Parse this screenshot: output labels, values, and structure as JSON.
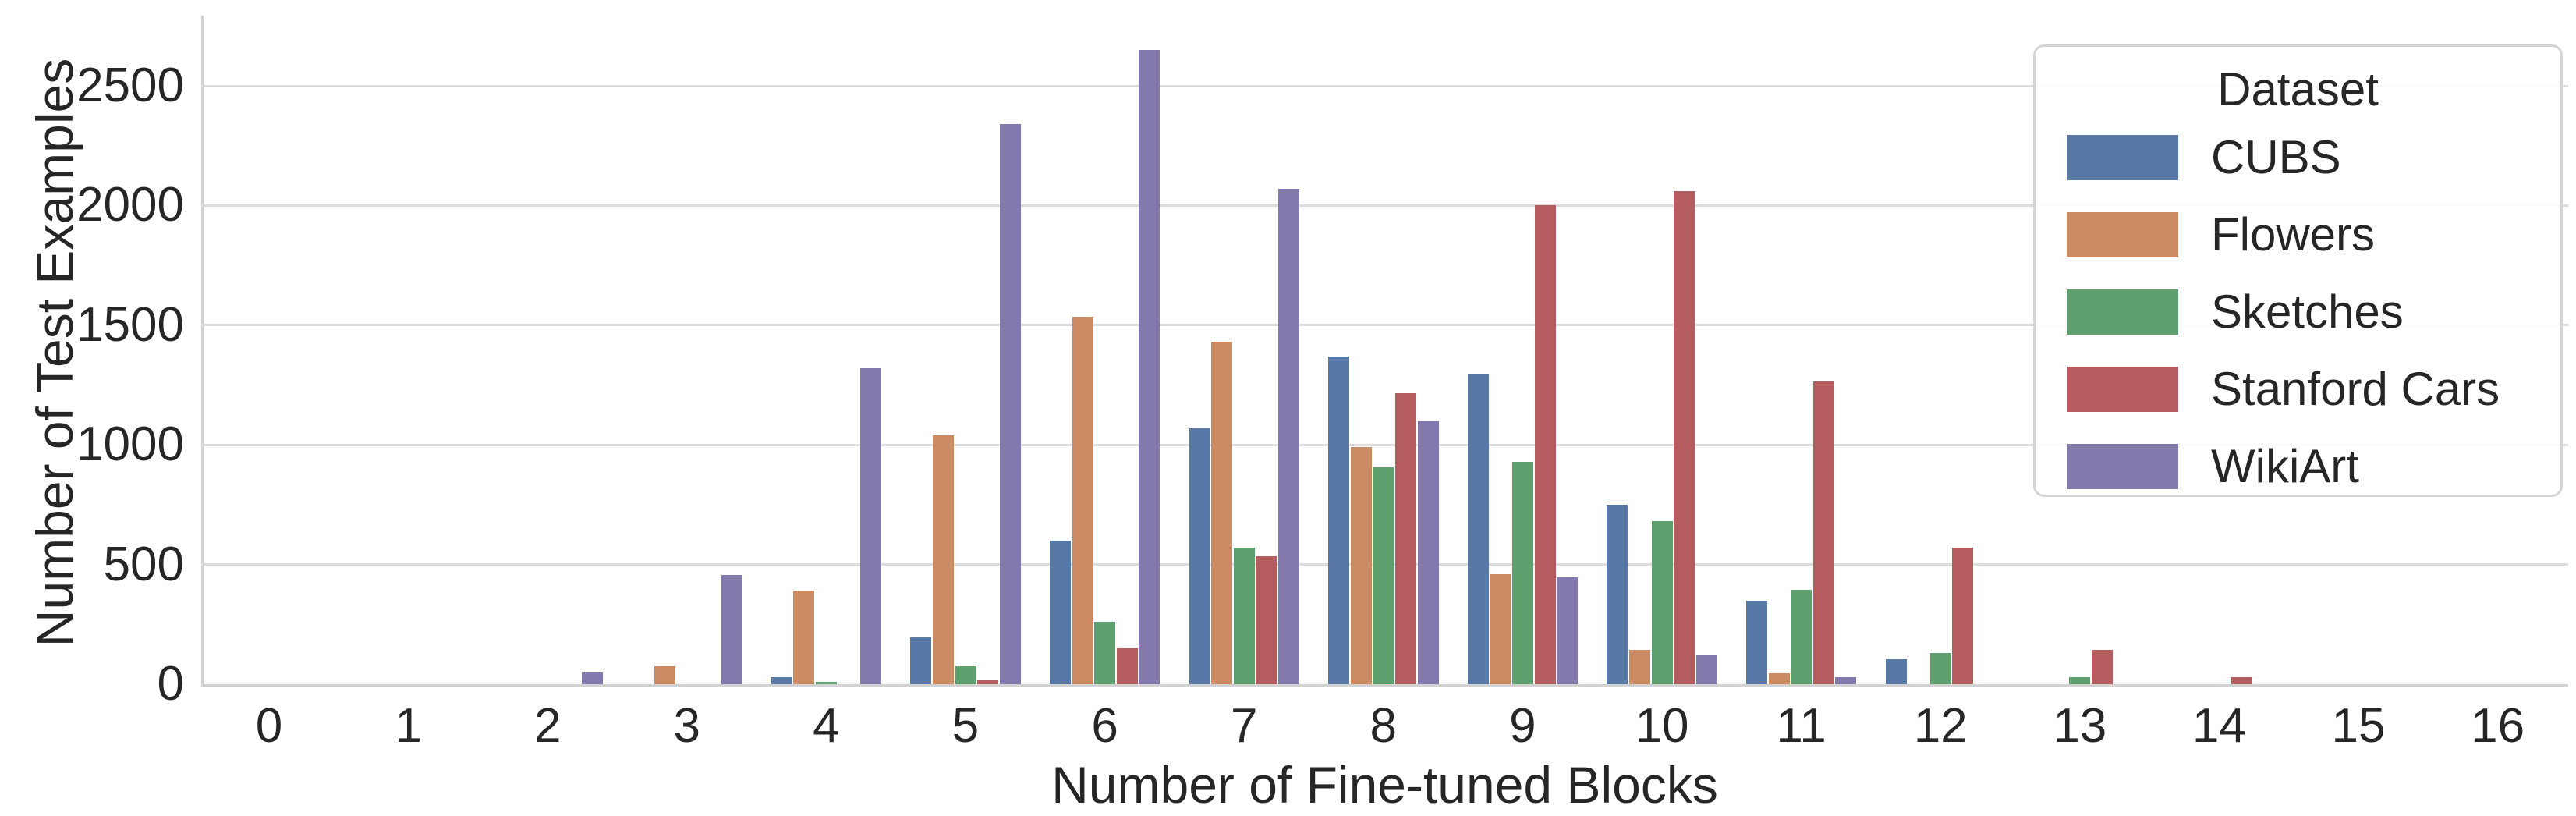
{
  "chart_data": {
    "type": "bar",
    "title": "",
    "xlabel": "Number of Fine-tuned Blocks",
    "ylabel": "Number of Test Examples",
    "categories": [
      "0",
      "1",
      "2",
      "3",
      "4",
      "5",
      "6",
      "7",
      "8",
      "9",
      "10",
      "11",
      "12",
      "13",
      "14",
      "15",
      "16"
    ],
    "series": [
      {
        "name": "CUBS",
        "color": "#5878a8",
        "values": [
          0,
          0,
          0,
          0,
          30,
          195,
          600,
          1070,
          1370,
          1295,
          750,
          350,
          105,
          0,
          0,
          0,
          0
        ]
      },
      {
        "name": "Flowers",
        "color": "#cc8a62",
        "values": [
          0,
          0,
          0,
          75,
          390,
          1040,
          1535,
          1430,
          990,
          460,
          145,
          45,
          0,
          0,
          0,
          0,
          0
        ]
      },
      {
        "name": "Sketches",
        "color": "#5fa06f",
        "values": [
          0,
          0,
          0,
          0,
          10,
          75,
          260,
          570,
          905,
          930,
          680,
          395,
          130,
          30,
          0,
          0,
          0
        ]
      },
      {
        "name": "Stanford Cars",
        "color": "#b55c5f",
        "values": [
          0,
          0,
          0,
          0,
          0,
          15,
          150,
          535,
          1215,
          2000,
          2060,
          1265,
          570,
          145,
          30,
          0,
          0
        ]
      },
      {
        "name": "WikiArt",
        "color": "#8379ad",
        "values": [
          0,
          0,
          50,
          455,
          1320,
          2340,
          2650,
          2070,
          1100,
          445,
          120,
          30,
          0,
          0,
          0,
          0,
          0
        ]
      }
    ],
    "ylim": [
      0,
      2750
    ],
    "yticks": [
      0,
      500,
      1000,
      1500,
      2000,
      2500
    ],
    "grid": true,
    "legend": {
      "title": "Dataset",
      "position": "upper right"
    }
  }
}
